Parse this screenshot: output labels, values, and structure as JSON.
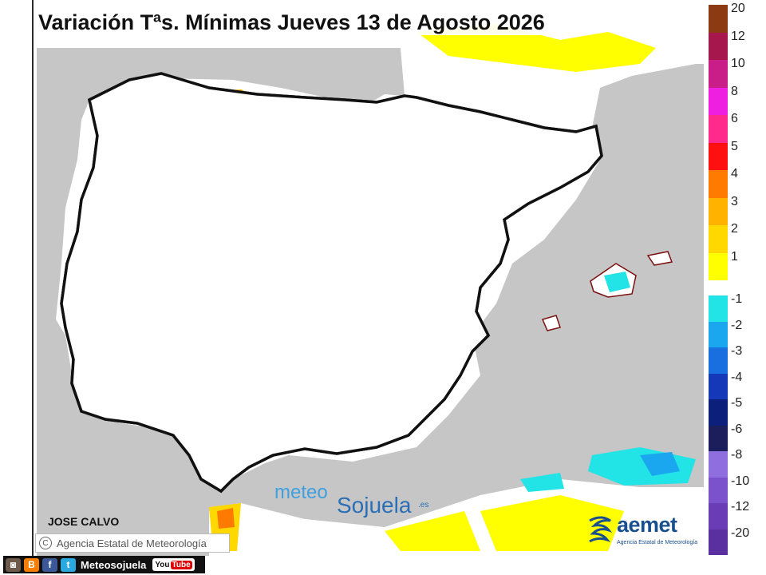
{
  "title": "Variación Tªs. Mínimas Jueves 13 de Agosto 2026",
  "author": "JOSE CALVO",
  "copyright": "Agencia Estatal de Meteorología",
  "copyright_symbol": "C",
  "social": {
    "handle": "Meteosojuela",
    "youtube": "You",
    "youtube_tube": "Tube",
    "icons": [
      "instagram-icon",
      "blogger-icon",
      "facebook-icon",
      "twitter-icon"
    ],
    "icon_glyphs": [
      "◙",
      "B",
      "f",
      "t"
    ]
  },
  "watermark": {
    "meteo": "meteo",
    "sojuela": "Sojuela",
    "suffix": ".es"
  },
  "aemet": {
    "name": "aemet",
    "subtitle": "Agencia Estatal de Meteorología"
  },
  "legend": {
    "entries": [
      {
        "label": "20",
        "color": "#8b3a12"
      },
      {
        "label": "12",
        "color": "#a5174d"
      },
      {
        "label": "10",
        "color": "#c91e87"
      },
      {
        "label": "8",
        "color": "#ee1fe0"
      },
      {
        "label": "6",
        "color": "#ff2a8c"
      },
      {
        "label": "5",
        "color": "#ff1010"
      },
      {
        "label": "4",
        "color": "#ff7a00"
      },
      {
        "label": "3",
        "color": "#ffb300"
      },
      {
        "label": "2",
        "color": "#ffd800"
      },
      {
        "label": "1",
        "color": "#ffff00"
      },
      {
        "label": "-1",
        "color": "#22e3e6"
      },
      {
        "label": "-2",
        "color": "#1aa7f0"
      },
      {
        "label": "-3",
        "color": "#1a6fe0"
      },
      {
        "label": "-4",
        "color": "#1438b8"
      },
      {
        "label": "-5",
        "color": "#0c1f7a"
      },
      {
        "label": "-6",
        "color": "#1c1e5c"
      },
      {
        "label": "-8",
        "color": "#8f6fe0"
      },
      {
        "label": "-10",
        "color": "#7c52cc"
      },
      {
        "label": "-12",
        "color": "#6a3cb5"
      },
      {
        "label": "-20",
        "color": "#5a2fa0"
      }
    ]
  },
  "colors": {
    "sea": "#c6c6c6",
    "land_neutral": "#ffffff",
    "anomaly_plus1": "#ffff00",
    "anomaly_plus2": "#ffd800",
    "anomaly_plus3": "#ffb300",
    "anomaly_plus4": "#ff7a00",
    "anomaly_plus5": "#ff1010",
    "anomaly_minus1": "#22e3e6",
    "anomaly_minus2": "#1aa7f0",
    "provincial_borders": "#7a1010",
    "coastline": "#111111"
  }
}
